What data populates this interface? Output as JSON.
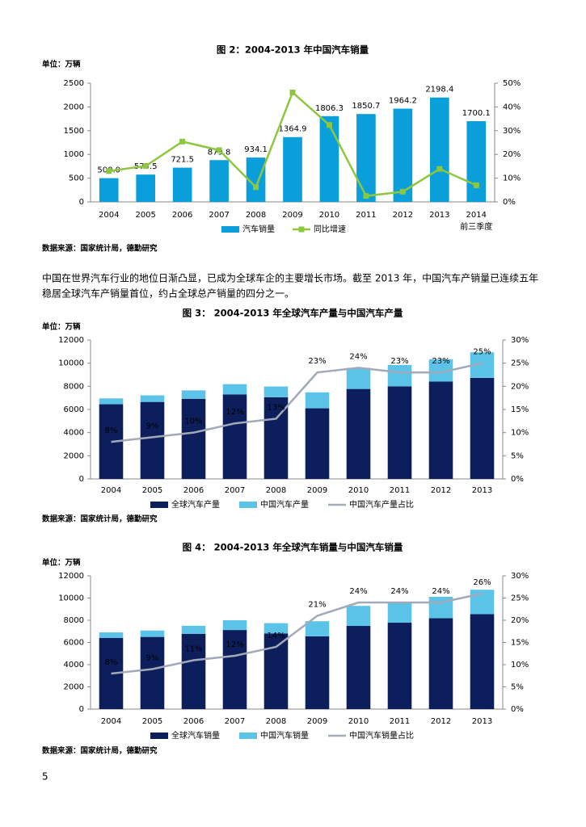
{
  "chart_data": [
    {
      "type": "combo",
      "title": "图 2：2004-2013 年中国汽车销量",
      "unit": "单位：万辆",
      "source": "数据来源：国家统计局，德勤研究",
      "categories": [
        "2004",
        "2005",
        "2006",
        "2007",
        "2008",
        "2009",
        "2010",
        "2011",
        "2012",
        "2013",
        "2014\n前三季度"
      ],
      "ylim": [
        0,
        2500
      ],
      "yticks": [
        0,
        500,
        1000,
        1500,
        2000,
        2500
      ],
      "y2lim": [
        0,
        50
      ],
      "y2ticks": [
        {
          "value": 0,
          "label": "0%"
        },
        {
          "value": 10,
          "label": "10%"
        },
        {
          "value": 20,
          "label": "20%"
        },
        {
          "value": 30,
          "label": "30%"
        },
        {
          "value": 40,
          "label": "40%"
        },
        {
          "value": 50,
          "label": "50%"
        }
      ],
      "stacked": false,
      "grid": false,
      "series": [
        {
          "name": "汽车销量",
          "type": "bar",
          "color": "#0a9fdb",
          "values": [
            500.0,
            575.5,
            721.5,
            879.8,
            934.1,
            1364.9,
            1806.3,
            1850.7,
            1964.2,
            2198.4,
            1700.1
          ],
          "value_labels": [
            "500.0",
            "575.5",
            "721.5",
            "879.8",
            "934.1",
            "1364.9",
            "1806.3",
            "1850.7",
            "1964.2",
            "2198.4",
            "1700.1"
          ]
        },
        {
          "name": "同比增速",
          "type": "line",
          "axis": "y2",
          "color": "#8dc63f",
          "values": [
            13,
            15.1,
            25.4,
            21.8,
            6.2,
            46.1,
            32.4,
            2.5,
            4.3,
            13.9,
            7.0
          ]
        }
      ]
    },
    {
      "type": "combo",
      "title": "图 3： 2004-2013 年全球汽车产量与中国汽车产量",
      "unit": "单位：万辆",
      "source": "数据来源：国家统计局，德勤研究",
      "categories": [
        "2004",
        "2005",
        "2006",
        "2007",
        "2008",
        "2009",
        "2010",
        "2011",
        "2012",
        "2013"
      ],
      "ylim": [
        0,
        12000
      ],
      "yticks": [
        0,
        2000,
        4000,
        6000,
        8000,
        10000,
        12000
      ],
      "y2lim": [
        0,
        30
      ],
      "y2ticks": [
        {
          "value": 0,
          "label": "0%"
        },
        {
          "value": 5,
          "label": "5%"
        },
        {
          "value": 10,
          "label": "10%"
        },
        {
          "value": 15,
          "label": "15%"
        },
        {
          "value": 20,
          "label": "20%"
        },
        {
          "value": 25,
          "label": "25%"
        },
        {
          "value": 30,
          "label": "30%"
        }
      ],
      "stacked": true,
      "grid": false,
      "series": [
        {
          "name": "全球汽车产量",
          "type": "bar",
          "color": "#0c1f5c",
          "values": [
            6450,
            6650,
            6920,
            7300,
            7050,
            6100,
            7770,
            8000,
            8410,
            8730
          ]
        },
        {
          "name": "中国汽车产量",
          "type": "bar",
          "color": "#5cc3e8",
          "values": [
            507,
            571,
            728,
            888,
            935,
            1379,
            1826,
            1842,
            1927,
            2212
          ]
        },
        {
          "name": "中国汽车产量占比",
          "type": "line",
          "axis": "y2",
          "color": "#a2a9b8",
          "values": [
            8,
            9,
            10,
            12,
            13,
            23,
            24,
            23,
            23,
            25
          ],
          "value_labels": [
            "8%",
            "9%",
            "10%",
            "12%",
            "13%",
            "23%",
            "24%",
            "23%",
            "23%",
            "25%"
          ]
        }
      ]
    },
    {
      "type": "combo",
      "title": "图 4： 2004-2013 年全球汽车销量与中国汽车销量",
      "unit": "单位：万辆",
      "source": "数据来源：国家统计局，德勤研究",
      "categories": [
        "2004",
        "2005",
        "2006",
        "2007",
        "2008",
        "2009",
        "2010",
        "2011",
        "2012",
        "2013"
      ],
      "ylim": [
        0,
        12000
      ],
      "yticks": [
        0,
        2000,
        4000,
        6000,
        8000,
        10000,
        12000
      ],
      "y2lim": [
        0,
        30
      ],
      "y2ticks": [
        {
          "value": 0,
          "label": "0%"
        },
        {
          "value": 5,
          "label": "5%"
        },
        {
          "value": 10,
          "label": "10%"
        },
        {
          "value": 15,
          "label": "15%"
        },
        {
          "value": 20,
          "label": "20%"
        },
        {
          "value": 25,
          "label": "25%"
        },
        {
          "value": 30,
          "label": "30%"
        }
      ],
      "stacked": true,
      "grid": false,
      "series": [
        {
          "name": "全球汽车销量",
          "type": "bar",
          "color": "#0c1f5c",
          "values": [
            6400,
            6500,
            6780,
            7120,
            6800,
            6550,
            7490,
            7780,
            8180,
            8550
          ]
        },
        {
          "name": "中国汽车销量",
          "type": "bar",
          "color": "#5cc3e8",
          "values": [
            507,
            576,
            722,
            880,
            938,
            1364,
            1806,
            1851,
            1931,
            2198
          ]
        },
        {
          "name": "中国汽车销量占比",
          "type": "line",
          "axis": "y2",
          "color": "#a2a9b8",
          "values": [
            8,
            9,
            11,
            12,
            14,
            21,
            24,
            24,
            24,
            26
          ],
          "value_labels": [
            "8%",
            "9%",
            "11%",
            "12%",
            "14%",
            "21%",
            "24%",
            "24%",
            "24%",
            "26%"
          ]
        }
      ]
    }
  ],
  "paragraph": [
    "中国在世界汽车行业的地位日渐凸显，已成为全球车企的主要增长市场。截至 2013 年，中国汽车产销量已连续五年",
    "稳居全球汽车产销量首位，约占全球总产销量的四分之一。"
  ],
  "page_number": "5"
}
